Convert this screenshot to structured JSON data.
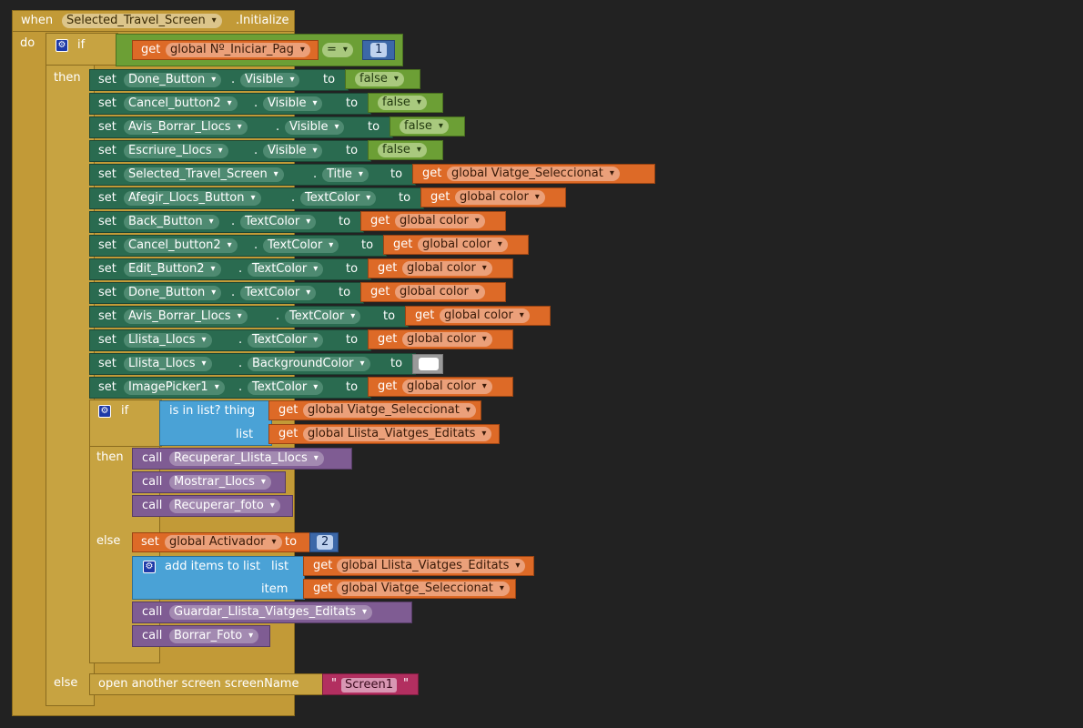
{
  "event": {
    "when": "when",
    "component": "Selected_Travel_Screen",
    "event_name": ".Initialize",
    "do": "do"
  },
  "if1": {
    "if": "if",
    "then": "then",
    "else": "else",
    "get": "get",
    "var": "global Nº_Iniciar_Pag",
    "op": "=",
    "num": "1"
  },
  "sets": [
    {
      "comp": "Done_Button",
      "prop": "Visible",
      "get_var": "",
      "bool": "false"
    },
    {
      "comp": "Cancel_button2",
      "prop": "Visible",
      "get_var": "",
      "bool": "false"
    },
    {
      "comp": "Avis_Borrar_Llocs",
      "prop": "Visible",
      "get_var": "",
      "bool": "false"
    },
    {
      "comp": "Escriure_Llocs",
      "prop": "Visible",
      "get_var": "",
      "bool": "false"
    },
    {
      "comp": "Selected_Travel_Screen",
      "prop": "Title",
      "get_var": "global Viatge_Seleccionat",
      "bool": ""
    },
    {
      "comp": "Afegir_Llocs_Button",
      "prop": "TextColor",
      "get_var": "global color",
      "bool": ""
    },
    {
      "comp": "Back_Button",
      "prop": "TextColor",
      "get_var": "global color",
      "bool": ""
    },
    {
      "comp": "Cancel_button2",
      "prop": "TextColor",
      "get_var": "global color",
      "bool": ""
    },
    {
      "comp": "Edit_Button2",
      "prop": "TextColor",
      "get_var": "global color",
      "bool": ""
    },
    {
      "comp": "Done_Button",
      "prop": "TextColor",
      "get_var": "global color",
      "bool": ""
    },
    {
      "comp": "Avis_Borrar_Llocs",
      "prop": "TextColor",
      "get_var": "global color",
      "bool": ""
    },
    {
      "comp": "Llista_Llocs",
      "prop": "TextColor",
      "get_var": "global color",
      "bool": ""
    },
    {
      "comp": "Llista_Llocs",
      "prop": "BackgroundColor",
      "get_var": "",
      "bool": ""
    },
    {
      "comp": "ImagePicker1",
      "prop": "TextColor",
      "get_var": "global color",
      "bool": ""
    }
  ],
  "words": {
    "set": "set",
    "to": "to",
    "get": "get",
    "dot": ".",
    "call": "call"
  },
  "if2": {
    "if": "if",
    "then": "then",
    "else": "else",
    "is_in_list": "is in list? thing",
    "list": "list",
    "thing_var": "global Viatge_Seleccionat",
    "list_var": "global Llista_Viatges_Editats"
  },
  "then_calls": [
    "Recuperar_Llista_Llocs",
    "Mostrar_Llocs",
    "Recuperar_foto"
  ],
  "else_block": {
    "set_var": "global Activador",
    "set_num": "2",
    "add_items": "add items to list",
    "list": "list",
    "item": "item",
    "list_var": "global Llista_Viatges_Editats",
    "item_var": "global Viatge_Seleccionat",
    "calls": [
      "Guardar_Llista_Viatges_Editats",
      "Borrar_Foto"
    ]
  },
  "final_else": {
    "open": "open another screen  screenName",
    "screen": "Screen1",
    "quote": "\""
  },
  "colors": {
    "event": "#c29a37",
    "setter": "#2a6b50",
    "getter": "#dd6a27",
    "logic": "#6c9f35",
    "list": "#4aa2d6",
    "procedure": "#7f5c93",
    "text": "#b22f60",
    "number": "#3c68a8"
  }
}
